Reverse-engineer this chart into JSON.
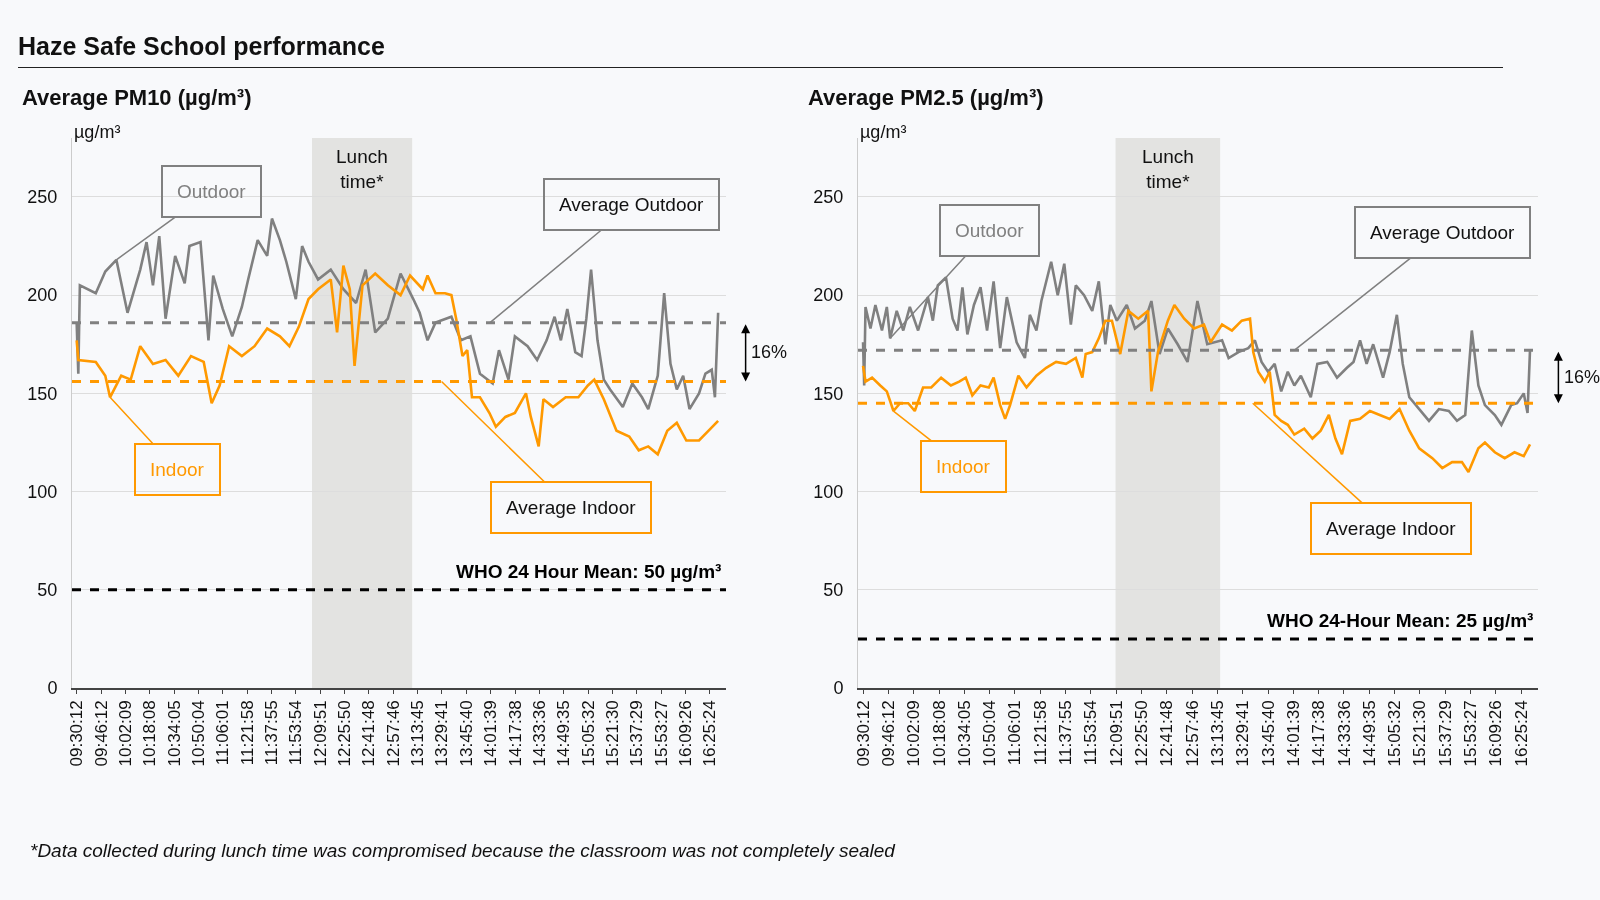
{
  "chart_data": [
    {
      "type": "line",
      "title": "Haze Safe School performance",
      "subtitle": "Average PM10 (µg/m³)",
      "ylabel": "µg/m³",
      "xlim": [
        9.45,
        16.6
      ],
      "ylim": [
        0,
        280
      ],
      "yticks": [
        0,
        50,
        100,
        150,
        200,
        250
      ],
      "xticks": [
        {
          "value": 9.50333,
          "label": "09:30:12"
        },
        {
          "value": 9.77,
          "label": "09:46:12"
        },
        {
          "value": 10.03583,
          "label": "10:02:09"
        },
        {
          "value": 10.30222,
          "label": "10:18:08"
        },
        {
          "value": 10.56806,
          "label": "10:34:05"
        },
        {
          "value": 10.83444,
          "label": "10:50:04"
        },
        {
          "value": 11.10028,
          "label": "11:06:01"
        },
        {
          "value": 11.36611,
          "label": "11:21:58"
        },
        {
          "value": 11.63194,
          "label": "11:37:55"
        },
        {
          "value": 11.89833,
          "label": "11:53:54"
        },
        {
          "value": 12.16417,
          "label": "12:09:51"
        },
        {
          "value": 12.43056,
          "label": "12:25:50"
        },
        {
          "value": 12.69667,
          "label": "12:41:48"
        },
        {
          "value": 12.96278,
          "label": "12:57:46"
        },
        {
          "value": 13.22917,
          "label": "13:13:45"
        },
        {
          "value": 13.49472,
          "label": "13:29:41"
        },
        {
          "value": 13.76111,
          "label": "13:45:40"
        },
        {
          "value": 14.0275,
          "label": "14:01:39"
        },
        {
          "value": 14.29389,
          "label": "14:17:38"
        },
        {
          "value": 14.56,
          "label": "14:33:36"
        },
        {
          "value": 14.82639,
          "label": "14:49:35"
        },
        {
          "value": 15.09222,
          "label": "15:05:32"
        },
        {
          "value": 15.35833,
          "label": "15:21:30"
        },
        {
          "value": 15.62472,
          "label": "15:37:29"
        },
        {
          "value": 15.89083,
          "label": "15:53:27"
        },
        {
          "value": 16.15722,
          "label": "16:09:26"
        },
        {
          "value": 16.42333,
          "label": "16:25:24"
        }
      ],
      "grid": "y",
      "line_style": "solid",
      "series": [
        {
          "name": "Outdoor",
          "color": "#808080",
          "x": [
            9.501,
            9.519,
            9.536,
            9.71,
            9.814,
            9.935,
            10.057,
            10.196,
            10.265,
            10.335,
            10.404,
            10.473,
            10.578,
            10.682,
            10.734,
            10.855,
            10.942,
            10.994,
            11.098,
            11.202,
            11.307,
            11.376,
            11.48,
            11.584,
            11.636,
            11.723,
            11.793,
            11.897,
            11.966,
            12.036,
            12.14,
            12.279,
            12.417,
            12.556,
            12.66,
            12.765,
            12.903,
            13.042,
            13.181,
            13.251,
            13.337,
            13.424,
            13.598,
            13.702,
            13.806,
            13.91,
            14.049,
            14.118,
            14.222,
            14.292,
            14.431,
            14.535,
            14.639,
            14.726,
            14.795,
            14.865,
            14.952,
            15.021,
            15.073,
            15.125,
            15.195,
            15.264,
            15.333,
            15.472,
            15.576,
            15.681,
            15.75,
            15.854,
            15.924,
            15.993,
            16.062,
            16.132,
            16.201,
            16.305,
            16.375,
            16.444,
            16.479,
            16.514
          ],
          "values": [
            186,
            160,
            205,
            201,
            212,
            218,
            191,
            213,
            227,
            205,
            230,
            188,
            220,
            206,
            225,
            227,
            177,
            210,
            193,
            179,
            194,
            208,
            228,
            220,
            239,
            228,
            217,
            198,
            225,
            217,
            208,
            213,
            203,
            196,
            213,
            181,
            188,
            211,
            198,
            191,
            177,
            186,
            189,
            177,
            179,
            160,
            155,
            172,
            157,
            179,
            174,
            167,
            177,
            189,
            177,
            193,
            171,
            169,
            188,
            213,
            177,
            157,
            152,
            143,
            155,
            148,
            142,
            159,
            201,
            165,
            152,
            159,
            142,
            150,
            160,
            162,
            148,
            191
          ]
        },
        {
          "name": "Indoor",
          "color": "#ff9900",
          "x": [
            9.501,
            9.519,
            9.71,
            9.814,
            9.866,
            9.988,
            10.092,
            10.196,
            10.335,
            10.473,
            10.612,
            10.751,
            10.89,
            10.977,
            11.064,
            11.168,
            11.307,
            11.446,
            11.584,
            11.723,
            11.827,
            11.931,
            12.036,
            12.14,
            12.279,
            12.348,
            12.417,
            12.487,
            12.539,
            12.626,
            12.765,
            12.903,
            13.042,
            13.146,
            13.285,
            13.337,
            13.424,
            13.528,
            13.598,
            13.65,
            13.719,
            13.771,
            13.823,
            13.91,
            14.014,
            14.084,
            14.188,
            14.292,
            14.413,
            14.466,
            14.552,
            14.604,
            14.709,
            14.847,
            14.986,
            15.09,
            15.16,
            15.264,
            15.403,
            15.542,
            15.646,
            15.75,
            15.854,
            15.958,
            16.062,
            16.166,
            16.305,
            16.41,
            16.514
          ],
          "values": [
            177,
            167,
            166,
            159,
            148,
            159,
            157,
            174,
            165,
            167,
            159,
            169,
            166,
            145,
            154,
            174,
            169,
            174,
            183,
            179,
            174,
            184,
            198,
            203,
            208,
            181,
            215,
            203,
            164,
            205,
            211,
            205,
            200,
            210,
            203,
            210,
            201,
            201,
            200,
            188,
            169,
            172,
            148,
            148,
            140,
            133,
            138,
            140,
            150,
            138,
            123,
            147,
            143,
            148,
            148,
            154,
            157,
            147,
            131,
            128,
            121,
            123,
            119,
            131,
            135,
            126,
            126,
            131,
            136
          ]
        }
      ],
      "ref_lines": [
        {
          "axis": "y",
          "value": 186,
          "label": "Average Outdoor",
          "color": "#808080",
          "line_style": "dashed"
        },
        {
          "axis": "y",
          "value": 156,
          "label": "Average Indoor",
          "color": "#ff9900",
          "line_style": "dashed"
        },
        {
          "axis": "y",
          "value": 50,
          "label": "WHO 24 Hour Mean: 50 µg/m³",
          "color": "#000000",
          "line_style": "dashed"
        }
      ],
      "bands": [
        {
          "axis": "x",
          "from": 12.074,
          "to": 13.169,
          "label": "Lunch time*",
          "color": "#e3e3e1"
        }
      ],
      "annotations": [
        "16%",
        "*Data collected during lunch time was compromised because the classroom was not completely sealed"
      ]
    },
    {
      "type": "line",
      "subtitle": "Average PM2.5 (µg/m³)",
      "ylabel": "µg/m³",
      "xlim": [
        9.45,
        16.6
      ],
      "ylim": [
        0,
        280
      ],
      "yticks": [
        0,
        50,
        100,
        150,
        200,
        250
      ],
      "xticks": [
        {
          "value": 9.50333,
          "label": "09:30:12"
        },
        {
          "value": 9.77,
          "label": "09:46:12"
        },
        {
          "value": 10.03583,
          "label": "10:02:09"
        },
        {
          "value": 10.30222,
          "label": "10:18:08"
        },
        {
          "value": 10.56806,
          "label": "10:34:05"
        },
        {
          "value": 10.83444,
          "label": "10:50:04"
        },
        {
          "value": 11.10028,
          "label": "11:06:01"
        },
        {
          "value": 11.36611,
          "label": "11:21:58"
        },
        {
          "value": 11.63194,
          "label": "11:37:55"
        },
        {
          "value": 11.89833,
          "label": "11:53:54"
        },
        {
          "value": 12.16417,
          "label": "12:09:51"
        },
        {
          "value": 12.43056,
          "label": "12:25:50"
        },
        {
          "value": 12.69667,
          "label": "12:41:48"
        },
        {
          "value": 12.96278,
          "label": "12:57:46"
        },
        {
          "value": 13.22917,
          "label": "13:13:45"
        },
        {
          "value": 13.49472,
          "label": "13:29:41"
        },
        {
          "value": 13.76111,
          "label": "13:45:40"
        },
        {
          "value": 14.0275,
          "label": "14:01:39"
        },
        {
          "value": 14.29389,
          "label": "14:17:38"
        },
        {
          "value": 14.56,
          "label": "14:33:36"
        },
        {
          "value": 14.82639,
          "label": "14:49:35"
        },
        {
          "value": 15.09222,
          "label": "15:05:32"
        },
        {
          "value": 15.35833,
          "label": "15:21:30"
        },
        {
          "value": 15.62472,
          "label": "15:37:29"
        },
        {
          "value": 15.89083,
          "label": "15:53:27"
        },
        {
          "value": 16.15722,
          "label": "16:09:26"
        },
        {
          "value": 16.42333,
          "label": "16:25:24"
        }
      ],
      "grid": "y",
      "line_style": "solid",
      "series": [
        {
          "name": "Outdoor",
          "color": "#808080",
          "x": [
            9.503,
            9.515,
            9.529,
            9.581,
            9.633,
            9.702,
            9.753,
            9.788,
            9.857,
            9.926,
            9.995,
            10.082,
            10.185,
            10.237,
            10.289,
            10.375,
            10.445,
            10.496,
            10.548,
            10.6,
            10.669,
            10.738,
            10.807,
            10.876,
            10.945,
            11.015,
            11.118,
            11.205,
            11.257,
            11.326,
            11.378,
            11.481,
            11.55,
            11.619,
            11.688,
            11.74,
            11.827,
            11.913,
            11.982,
            12.051,
            12.103,
            12.172,
            12.276,
            12.362,
            12.466,
            12.535,
            12.621,
            12.708,
            12.811,
            12.915,
            13.019,
            13.122,
            13.278,
            13.347,
            13.451,
            13.554,
            13.623,
            13.693,
            13.762,
            13.831,
            13.9,
            13.969,
            14.038,
            14.107,
            14.211,
            14.28,
            14.384,
            14.487,
            14.591,
            14.66,
            14.729,
            14.798,
            14.867,
            14.971,
            15.04,
            15.116,
            15.178,
            15.247,
            15.351,
            15.454,
            15.558,
            15.662,
            15.748,
            15.835,
            15.904,
            15.973,
            16.042,
            16.146,
            16.215,
            16.318,
            16.38,
            16.45,
            16.49,
            16.516
          ],
          "values": [
            176,
            154,
            194,
            183,
            195,
            182,
            194,
            178,
            192,
            182,
            194,
            182,
            199,
            187,
            205,
            209,
            188,
            182,
            204,
            180,
            195,
            204,
            182,
            207,
            173,
            199,
            176,
            168,
            190,
            182,
            197,
            217,
            200,
            216,
            185,
            205,
            200,
            192,
            207,
            175,
            195,
            187,
            195,
            183,
            187,
            197,
            170,
            183,
            175,
            166,
            197,
            175,
            177,
            168,
            171,
            173,
            177,
            166,
            161,
            165,
            151,
            161,
            154,
            159,
            148,
            165,
            166,
            158,
            163,
            166,
            177,
            165,
            175,
            158,
            171,
            190,
            165,
            148,
            142,
            136,
            142,
            141,
            136,
            139,
            182,
            154,
            144,
            139,
            134,
            144,
            145,
            150,
            140,
            172
          ]
        },
        {
          "name": "Indoor",
          "color": "#ff9900",
          "x": [
            9.503,
            9.529,
            9.598,
            9.684,
            9.753,
            9.823,
            9.892,
            9.978,
            10.047,
            10.134,
            10.22,
            10.324,
            10.427,
            10.514,
            10.583,
            10.652,
            10.738,
            10.825,
            10.876,
            10.945,
            10.997,
            11.049,
            11.136,
            11.222,
            11.326,
            11.429,
            11.533,
            11.637,
            11.74,
            11.809,
            11.844,
            11.913,
            11.982,
            12.051,
            12.12,
            12.207,
            12.293,
            12.397,
            12.5,
            12.535,
            12.604,
            12.708,
            12.777,
            12.88,
            12.984,
            13.088,
            13.157,
            13.278,
            13.382,
            13.485,
            13.572,
            13.606,
            13.658,
            13.727,
            13.779,
            13.831,
            13.9,
            13.969,
            14.038,
            14.142,
            14.228,
            14.315,
            14.401,
            14.47,
            14.539,
            14.625,
            14.729,
            14.833,
            14.936,
            15.04,
            15.144,
            15.247,
            15.351,
            15.489,
            15.593,
            15.697,
            15.8,
            15.869,
            15.973,
            16.042,
            16.146,
            16.25,
            16.353,
            16.45,
            16.516
          ],
          "values": [
            164,
            156,
            158,
            154,
            151,
            141,
            145,
            145,
            141,
            153,
            153,
            158,
            154,
            156,
            158,
            149,
            154,
            153,
            158,
            144,
            137,
            144,
            159,
            153,
            159,
            163,
            166,
            165,
            168,
            158,
            170,
            171,
            178,
            187,
            187,
            170,
            192,
            188,
            192,
            151,
            171,
            187,
            195,
            188,
            183,
            185,
            176,
            185,
            182,
            187,
            188,
            171,
            161,
            156,
            161,
            139,
            136,
            134,
            129,
            132,
            127,
            131,
            139,
            127,
            119,
            136,
            137,
            141,
            139,
            137,
            142,
            131,
            122,
            117,
            112,
            115,
            115,
            110,
            122,
            125,
            120,
            117,
            120,
            118,
            124
          ]
        }
      ],
      "ref_lines": [
        {
          "axis": "y",
          "value": 172,
          "label": "Average Outdoor",
          "color": "#808080",
          "line_style": "dashed"
        },
        {
          "axis": "y",
          "value": 145,
          "label": "Average Indoor",
          "color": "#ff9900",
          "line_style": "dashed"
        },
        {
          "axis": "y",
          "value": 25,
          "label": "WHO 24-Hour Mean: 25 µg/m³",
          "color": "#000000",
          "line_style": "dashed"
        }
      ],
      "bands": [
        {
          "axis": "x",
          "from": 12.158,
          "to": 13.258,
          "label": "Lunch time*",
          "color": "#e3e3e1"
        }
      ],
      "annotations": [
        "16%"
      ]
    }
  ]
}
